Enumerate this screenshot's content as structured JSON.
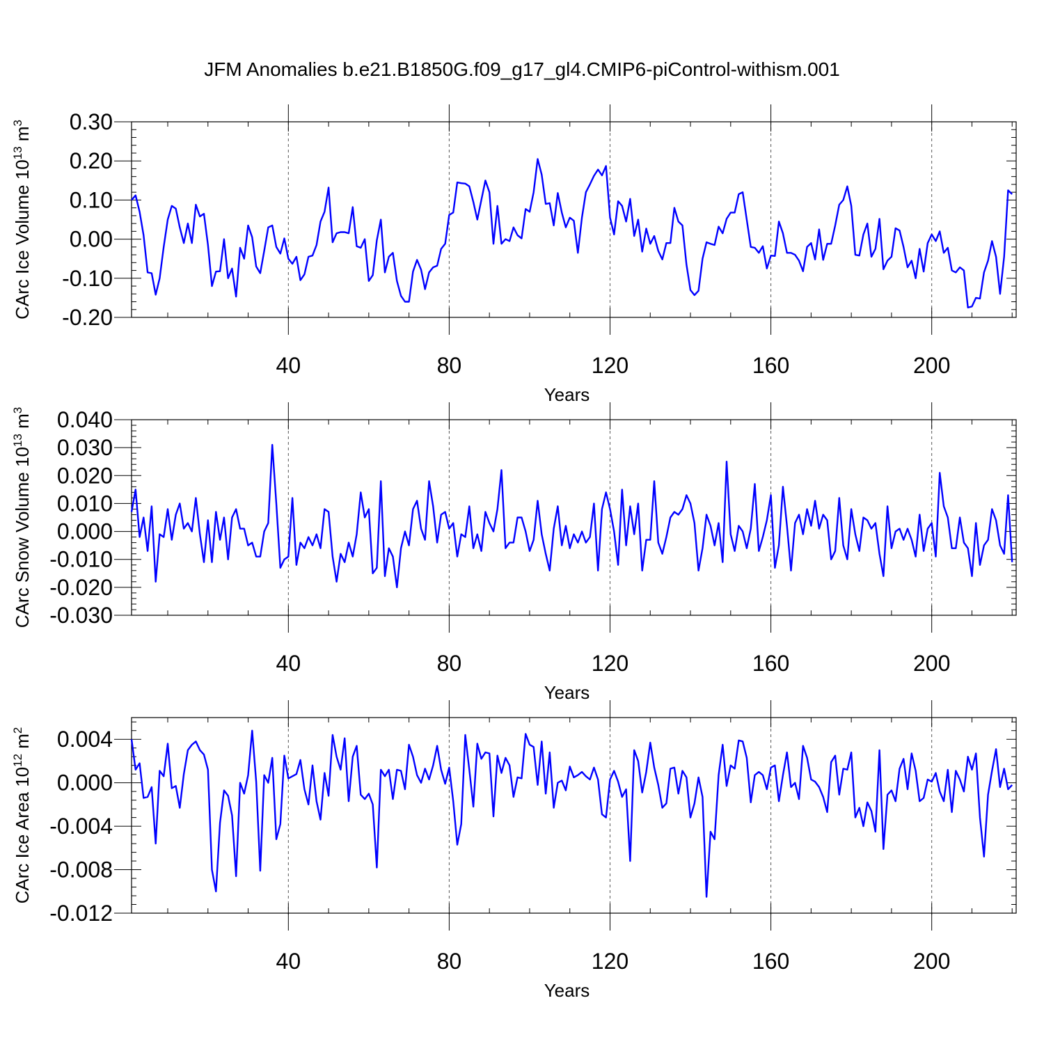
{
  "title": "JFM Anomalies b.e21.B1850G.f09_g17_gl4.CMIP6-piControl-withism.001",
  "colors": {
    "line": "#0000ff",
    "axis": "#000000",
    "grid": "#555555"
  },
  "chart_data": [
    {
      "type": "line",
      "name": "CArc Ice Volume",
      "ylabel": "CArc Ice Volume 10",
      "ylabel_exp": "13",
      "ylabel_unit": " m",
      "ylabel_unit_exp": "3",
      "xlabel": "Years",
      "xlim": [
        1,
        221
      ],
      "ylim": [
        -0.2,
        0.3
      ],
      "xticks": [
        40,
        80,
        120,
        160,
        200
      ],
      "yticks": [
        -0.2,
        -0.1,
        0.0,
        0.1,
        0.2,
        0.3
      ],
      "ytick_labels": [
        "-0.20",
        "-0.10",
        "0.00",
        "0.10",
        "0.20",
        "0.30"
      ],
      "grid": "vertical dashed at x ticks",
      "values": [
        0.1,
        0.112,
        0.07,
        0.01,
        -0.085,
        -0.087,
        -0.142,
        -0.1,
        -0.02,
        0.05,
        0.085,
        0.078,
        0.03,
        -0.01,
        0.04,
        -0.01,
        0.088,
        0.058,
        0.065,
        -0.015,
        -0.12,
        -0.083,
        -0.082,
        0.0,
        -0.1,
        -0.075,
        -0.147,
        -0.022,
        -0.05,
        0.035,
        0.005,
        -0.07,
        -0.087,
        -0.03,
        0.03,
        0.035,
        -0.02,
        -0.037,
        0.002,
        -0.05,
        -0.063,
        -0.045,
        -0.105,
        -0.09,
        -0.045,
        -0.042,
        -0.015,
        0.045,
        0.07,
        0.132,
        -0.008,
        0.015,
        0.018,
        0.018,
        0.015,
        0.082,
        -0.018,
        -0.022,
        0.0,
        -0.107,
        -0.092,
        -0.003,
        0.05,
        -0.085,
        -0.045,
        -0.035,
        -0.107,
        -0.145,
        -0.16,
        -0.16,
        -0.083,
        -0.053,
        -0.078,
        -0.128,
        -0.085,
        -0.072,
        -0.068,
        -0.025,
        -0.012,
        0.062,
        0.068,
        0.145,
        0.143,
        0.142,
        0.135,
        0.095,
        0.05,
        0.1,
        0.15,
        0.12,
        -0.012,
        0.085,
        -0.012,
        0.0,
        -0.005,
        0.03,
        0.01,
        0.002,
        0.077,
        0.07,
        0.12,
        0.205,
        0.165,
        0.09,
        0.092,
        0.035,
        0.118,
        0.068,
        0.03,
        0.055,
        0.047,
        -0.035,
        0.055,
        0.12,
        0.14,
        0.162,
        0.178,
        0.163,
        0.187,
        0.055,
        0.012,
        0.097,
        0.085,
        0.045,
        0.103,
        0.008,
        0.05,
        -0.032,
        0.027,
        -0.012,
        0.008,
        -0.03,
        -0.052,
        -0.01,
        -0.01,
        0.08,
        0.045,
        0.035,
        -0.065,
        -0.13,
        -0.143,
        -0.132,
        -0.05,
        -0.008,
        -0.012,
        -0.015,
        0.032,
        0.015,
        0.052,
        0.068,
        0.068,
        0.115,
        0.12,
        0.05,
        -0.02,
        -0.022,
        -0.035,
        -0.018,
        -0.075,
        -0.042,
        -0.043,
        0.045,
        0.015,
        -0.035,
        -0.035,
        -0.04,
        -0.055,
        -0.082,
        -0.02,
        -0.01,
        -0.052,
        0.025,
        -0.053,
        -0.012,
        -0.012,
        0.035,
        0.088,
        0.1,
        0.135,
        0.085,
        -0.04,
        -0.042,
        0.012,
        0.04,
        -0.045,
        -0.025,
        0.052,
        -0.077,
        -0.055,
        -0.045,
        0.028,
        0.022,
        -0.02,
        -0.072,
        -0.055,
        -0.1,
        -0.025,
        -0.083,
        -0.01,
        0.012,
        -0.005,
        0.02,
        -0.035,
        -0.022,
        -0.08,
        -0.085,
        -0.072,
        -0.08,
        -0.175,
        -0.172,
        -0.15,
        -0.152,
        -0.085,
        -0.055,
        -0.005,
        -0.045,
        -0.14,
        -0.045,
        0.125,
        0.115
      ]
    },
    {
      "type": "line",
      "name": "CArc Snow Volume",
      "ylabel": "CArc Snow Volume 10",
      "ylabel_exp": "13",
      "ylabel_unit": " m",
      "ylabel_unit_exp": "3",
      "xlabel": "Years",
      "xlim": [
        1,
        221
      ],
      "ylim": [
        -0.03,
        0.04
      ],
      "xticks": [
        40,
        80,
        120,
        160,
        200
      ],
      "yticks": [
        -0.03,
        -0.02,
        -0.01,
        0.0,
        0.01,
        0.02,
        0.03,
        0.04
      ],
      "ytick_labels": [
        "-0.030",
        "-0.020",
        "-0.010",
        "0.000",
        "0.010",
        "0.020",
        "0.030",
        "0.040"
      ],
      "grid": "vertical dashed at x ticks",
      "values": [
        0.007,
        0.015,
        -0.002,
        0.005,
        -0.007,
        0.009,
        -0.018,
        -0.001,
        -0.002,
        0.008,
        -0.003,
        0.006,
        0.01,
        0.001,
        0.003,
        0.0,
        0.012,
        -0.001,
        -0.011,
        0.004,
        -0.011,
        0.007,
        -0.003,
        0.005,
        -0.01,
        0.005,
        0.008,
        0.001,
        0.001,
        -0.005,
        -0.004,
        -0.009,
        -0.009,
        0.0,
        0.003,
        0.031,
        0.01,
        -0.013,
        -0.01,
        -0.009,
        0.012,
        -0.012,
        -0.004,
        -0.006,
        -0.002,
        -0.005,
        -0.001,
        -0.006,
        0.008,
        0.007,
        -0.009,
        -0.018,
        -0.008,
        -0.011,
        -0.004,
        -0.009,
        -0.001,
        0.014,
        0.005,
        0.008,
        -0.015,
        -0.013,
        0.018,
        -0.016,
        -0.006,
        -0.009,
        -0.02,
        -0.006,
        0.0,
        -0.005,
        0.008,
        0.011,
        0.001,
        -0.003,
        0.018,
        0.009,
        -0.004,
        0.006,
        0.007,
        0.001,
        0.003,
        -0.009,
        -0.001,
        -0.002,
        0.009,
        -0.006,
        -0.001,
        -0.007,
        0.007,
        0.003,
        0.0,
        0.008,
        0.022,
        -0.006,
        -0.004,
        -0.004,
        0.005,
        0.005,
        0.0,
        -0.007,
        -0.003,
        0.011,
        -0.001,
        -0.008,
        -0.014,
        0.001,
        0.009,
        -0.005,
        0.002,
        -0.006,
        -0.001,
        -0.004,
        0.0,
        -0.004,
        -0.002,
        0.01,
        -0.014,
        0.008,
        0.014,
        0.008,
        0.0,
        -0.012,
        0.015,
        -0.005,
        0.009,
        -0.001,
        0.01,
        -0.014,
        -0.003,
        -0.003,
        0.018,
        -0.004,
        -0.008,
        -0.002,
        0.005,
        0.007,
        0.006,
        0.008,
        0.013,
        0.01,
        0.003,
        -0.014,
        -0.006,
        0.006,
        0.002,
        -0.005,
        0.003,
        -0.011,
        0.025,
        -0.001,
        -0.007,
        0.002,
        0.0,
        -0.006,
        0.001,
        0.017,
        -0.007,
        -0.002,
        0.004,
        0.013,
        -0.013,
        -0.005,
        0.016,
        0.002,
        -0.014,
        0.003,
        0.006,
        -0.001,
        0.008,
        0.002,
        0.011,
        0.001,
        0.006,
        0.004,
        -0.01,
        -0.007,
        0.012,
        -0.005,
        -0.01,
        0.008,
        -0.001,
        -0.007,
        0.005,
        0.004,
        0.001,
        0.003,
        -0.008,
        -0.016,
        0.009,
        -0.006,
        0.0,
        0.001,
        -0.003,
        0.001,
        -0.003,
        -0.009,
        0.006,
        -0.007,
        0.001,
        0.003,
        -0.009,
        0.021,
        0.009,
        0.005,
        -0.006,
        -0.006,
        0.005,
        -0.004,
        -0.006,
        -0.016,
        0.003,
        -0.012,
        -0.005,
        -0.003,
        0.008,
        0.004,
        -0.005,
        -0.008,
        0.013,
        -0.011
      ]
    },
    {
      "type": "line",
      "name": "CArc Ice Area",
      "ylabel": "CArc Ice Area 10",
      "ylabel_exp": "12",
      "ylabel_unit": " m",
      "ylabel_unit_exp": "2",
      "xlabel": "Years",
      "xlim": [
        1,
        221
      ],
      "ylim": [
        -0.012,
        0.006
      ],
      "xticks": [
        40,
        80,
        120,
        160,
        200
      ],
      "yticks": [
        -0.012,
        -0.008,
        -0.004,
        0.0,
        0.004
      ],
      "ytick_labels": [
        "-0.012",
        "-0.008",
        "-0.004",
        "0.000",
        "0.004"
      ],
      "grid": "vertical dashed at x ticks",
      "values": [
        0.004,
        0.0012,
        0.0018,
        -0.0014,
        -0.0013,
        -0.0004,
        -0.0056,
        0.0011,
        0.0006,
        0.0036,
        -0.0005,
        -0.0003,
        -0.0023,
        0.0008,
        0.003,
        0.0035,
        0.0038,
        0.003,
        0.0026,
        0.0012,
        -0.008,
        -0.01,
        -0.0037,
        -0.0007,
        -0.0012,
        -0.003,
        -0.0086,
        0.0,
        -0.001,
        0.0007,
        0.0048,
        0.0001,
        -0.0081,
        0.0007,
        0.0,
        0.0023,
        -0.0052,
        -0.0038,
        0.0025,
        0.0004,
        0.0006,
        0.0008,
        0.0021,
        -0.0006,
        -0.002,
        0.0016,
        -0.0017,
        -0.0034,
        0.0009,
        -0.0012,
        0.0044,
        0.0024,
        0.0012,
        0.0041,
        -0.0017,
        0.0024,
        0.0034,
        -0.0011,
        -0.0015,
        -0.001,
        -0.002,
        -0.0078,
        0.0012,
        0.0006,
        0.0012,
        -0.0015,
        0.0012,
        0.0011,
        -0.0006,
        0.0035,
        0.0024,
        0.0007,
        0.0,
        0.0013,
        0.0003,
        0.0016,
        0.0034,
        0.0012,
        -0.0001,
        0.0014,
        -0.0017,
        -0.0057,
        -0.0038,
        0.0044,
        0.0012,
        -0.0022,
        0.0036,
        0.0022,
        0.0028,
        0.0027,
        -0.0031,
        0.0025,
        0.0009,
        0.0023,
        0.0016,
        -0.0013,
        0.0005,
        0.0004,
        0.0045,
        0.0035,
        0.0033,
        -0.0002,
        0.0038,
        -0.001,
        0.0028,
        -0.0023,
        0.0,
        0.0002,
        -0.0007,
        0.0015,
        0.0005,
        0.0007,
        0.001,
        0.0006,
        0.0003,
        0.0014,
        0.0003,
        -0.0029,
        -0.0032,
        0.0003,
        0.0011,
        0.0001,
        -0.0013,
        -0.0006,
        -0.0072,
        0.003,
        0.002,
        -0.0009,
        0.001,
        0.0037,
        0.0014,
        -0.0002,
        -0.0023,
        -0.0019,
        0.0013,
        0.0014,
        -0.001,
        0.0011,
        0.0005,
        -0.0032,
        -0.0019,
        0.0005,
        -0.0013,
        -0.0105,
        -0.0045,
        -0.0052,
        0.0007,
        0.0035,
        -0.0003,
        0.0016,
        0.0013,
        0.0039,
        0.0038,
        0.0023,
        -0.0018,
        0.0007,
        0.001,
        0.0007,
        -0.0006,
        0.0014,
        0.0016,
        -0.0017,
        0.0007,
        0.0028,
        -0.0004,
        0.0,
        -0.0015,
        0.0034,
        0.0023,
        0.0003,
        0.0001,
        -0.0004,
        -0.0013,
        -0.0027,
        0.0019,
        0.0025,
        -0.0011,
        0.0013,
        0.0012,
        0.0028,
        -0.0032,
        -0.0023,
        -0.004,
        -0.0018,
        -0.0026,
        -0.0045,
        0.003,
        -0.0061,
        -0.0011,
        -0.0007,
        -0.0017,
        0.0013,
        0.0022,
        -0.0006,
        0.0027,
        0.0011,
        -0.0017,
        -0.0014,
        0.0003,
        0.0001,
        0.0009,
        -0.0008,
        -0.0017,
        0.0012,
        -0.0027,
        0.0011,
        0.0003,
        -0.0008,
        0.0024,
        0.0012,
        0.0027,
        -0.0032,
        -0.0068,
        -0.0011,
        0.0011,
        0.0031,
        -0.0004,
        0.0013,
        -0.0006,
        -0.0002
      ]
    }
  ]
}
